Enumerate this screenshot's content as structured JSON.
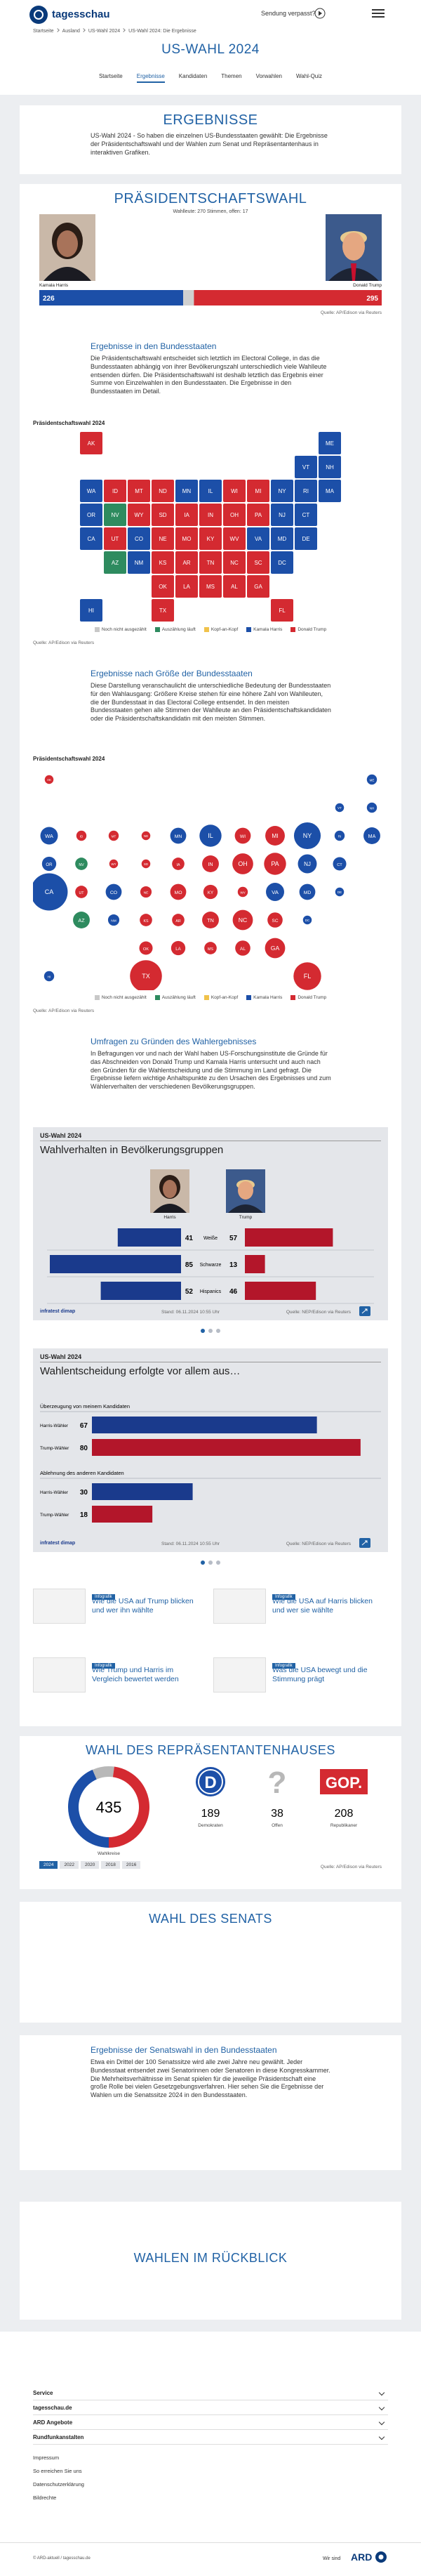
{
  "header": {
    "logo": "tagesschau",
    "missed": "Sendung verpasst?"
  },
  "breadcrumb": [
    "Startseite",
    "Ausland",
    "US-Wahl 2024",
    "US-Wahl 2024: Die Ergebnisse"
  ],
  "page_title": "US-WAHL 2024",
  "nav": [
    "Startseite",
    "Ergebnisse",
    "Kandidaten",
    "Themen",
    "Vorwahlen",
    "Wahl-Quiz"
  ],
  "intro": {
    "title": "ERGEBNISSE",
    "text": "US-Wahl 2024 - So haben die einzelnen US-Bundesstaaten gewählt: Die Ergebnisse der Präsidentschaftswahl und der Wahlen zum Senat und Repräsentantenhaus in interaktiven Grafiken."
  },
  "president": {
    "title": "PRÄSIDENTSCHAFTSWAHL",
    "subtitle": "Wahlleute: 270 Stimmen, offen: 17",
    "states_heading": "Ergebnisse in den Bundesstaaten",
    "states_text": "Die Präsidentschaftswahl entscheidet sich letztlich im Electoral College, in das die Bundesstaaten abhängig von ihrer Bevölkerungszahl unterschiedlich viele Wahlleute entsenden dürfen. Die Präsidentschaftswahl ist deshalb letztlich das Ergebnis einer Summe von Einzelwahlen in den Bundesstaaten. Die Ergebnisse in den Bundesstaaten im Detail.",
    "size_heading": "Ergebnisse nach Größe der Bundesstaaten",
    "size_text": "Diese Darstellung veranschaulicht die unterschiedliche Bedeutung der Bundesstaaten für den Wahlausgang: Größere Kreise stehen für eine höhere Zahl von Wahlleuten, die der Bundesstaat in das Electoral College entsendet. In den meisten Bundesstaaten gehen alle Stimmen der Wahlleute an den Präsidentschaftskandidaten oder die Präsidentschaftskandidatin mit den meisten Stimmen.",
    "polls_heading": "Umfragen zu Gründen des Wahlergebnisses",
    "polls_text": "In Befragungen vor und nach der Wahl haben US-Forschungsinstitute die Gründe für das Abschneiden von Donald Trump und Kamala Harris untersucht und auch nach den Gründen für die Wahlentscheidung und die Stimmung im Land gefragt. Die Ergebnisse liefern wichtige Anhaltspunkte zu den Ursachen des Ergebnisses und zum Wählerverhalten der verschiedenen Bevölkerungsgruppen."
  },
  "teasers": [
    {
      "kicker": "Infografik",
      "title": "Wie die USA auf Trump blicken und wer ihn wählte"
    },
    {
      "kicker": "Infografik",
      "title": "Wie die USA auf Harris blicken und wer sie wählte"
    },
    {
      "kicker": "Infografik",
      "title": "Wie Trump und Harris im Vergleich bewertet werden"
    },
    {
      "kicker": "Infografik",
      "title": "Was die USA bewegt und die Stimmung prägt"
    }
  ],
  "house": {
    "title": "WAHL DES REPRÄSENTANTENHAUSES"
  },
  "senate": {
    "title": "WAHL DES SENATS",
    "heading": "Ergebnisse der Senatswahl in den Bundesstaaten",
    "text": "Etwa ein Drittel der 100 Senatssitze wird alle zwei Jahre neu gewählt. Jeder Bundesstaat entsendet zwei Senatorinnen oder Senatoren in diese Kongresskammer. Die Mehrheitsverhältnisse im Senat spielen für die jeweilige Präsidentschaft eine große Rolle bei vielen Gesetzgebungsverfahren. Hier sehen Sie die Ergebnisse der Wahlen um die Senatssitze 2024 in den Bundesstaaten."
  },
  "review": {
    "title": "WAHLEN IM RÜCKBLICK"
  },
  "footer": {
    "sections": [
      "Service",
      "tagesschau.de",
      "ARD Angebote",
      "Rundfunkanstalten"
    ],
    "links": [
      "Impressum",
      "So erreichen Sie uns",
      "Datenschutzerklärung",
      "Bildrechte"
    ],
    "copyright": "© ARD-aktuell / tagesschau.de",
    "brand_text": "Wir sind",
    "brand": "ARD"
  },
  "chart_data": [
    {
      "type": "bar",
      "xlim": [
        0,
        538
      ],
      "series": [
        {
          "name": "Kamala Harris",
          "color": "#1c4fa8",
          "values": [
            226
          ]
        },
        {
          "name": "Donald Trump",
          "color": "#d42a31",
          "values": [
            295
          ]
        }
      ],
      "source": "Quelle: AP/Edison via Reuters"
    },
    {
      "type": "map",
      "title": "Präsidentschaftswahl 2024",
      "legend": [
        {
          "name": "Noch nicht ausgezählt",
          "color": "#c8c8c8"
        },
        {
          "name": "Auszählung läuft",
          "color": "#2e8b5f"
        },
        {
          "name": "Kopf-an-Kopf",
          "color": "#f0c24b"
        },
        {
          "name": "Kamala Harris",
          "color": "#1c4fa8"
        },
        {
          "name": "Donald Trump",
          "color": "#d42a31"
        }
      ],
      "states": [
        {
          "abbr": "AL",
          "color": "#d42a31"
        },
        {
          "abbr": "AK",
          "color": "#d42a31"
        },
        {
          "abbr": "AZ",
          "color": "#2e8b5f"
        },
        {
          "abbr": "AR",
          "color": "#d42a31"
        },
        {
          "abbr": "CA",
          "color": "#1c4fa8"
        },
        {
          "abbr": "CO",
          "color": "#1c4fa8"
        },
        {
          "abbr": "CT",
          "color": "#1c4fa8"
        },
        {
          "abbr": "DE",
          "color": "#1c4fa8"
        },
        {
          "abbr": "DC",
          "color": "#1c4fa8"
        },
        {
          "abbr": "FL",
          "color": "#d42a31"
        },
        {
          "abbr": "GA",
          "color": "#d42a31"
        },
        {
          "abbr": "HI",
          "color": "#1c4fa8"
        },
        {
          "abbr": "ID",
          "color": "#d42a31"
        },
        {
          "abbr": "IL",
          "color": "#1c4fa8"
        },
        {
          "abbr": "IN",
          "color": "#d42a31"
        },
        {
          "abbr": "IA",
          "color": "#d42a31"
        },
        {
          "abbr": "KS",
          "color": "#d42a31"
        },
        {
          "abbr": "KY",
          "color": "#d42a31"
        },
        {
          "abbr": "LA",
          "color": "#d42a31"
        },
        {
          "abbr": "ME",
          "color": "#1c4fa8"
        },
        {
          "abbr": "MD",
          "color": "#1c4fa8"
        },
        {
          "abbr": "MA",
          "color": "#1c4fa8"
        },
        {
          "abbr": "MI",
          "color": "#d42a31"
        },
        {
          "abbr": "MN",
          "color": "#1c4fa8"
        },
        {
          "abbr": "MS",
          "color": "#d42a31"
        },
        {
          "abbr": "MO",
          "color": "#d42a31"
        },
        {
          "abbr": "MT",
          "color": "#d42a31"
        },
        {
          "abbr": "NE",
          "color": "#d42a31"
        },
        {
          "abbr": "NV",
          "color": "#2e8b5f"
        },
        {
          "abbr": "NH",
          "color": "#1c4fa8"
        },
        {
          "abbr": "NJ",
          "color": "#1c4fa8"
        },
        {
          "abbr": "NM",
          "color": "#1c4fa8"
        },
        {
          "abbr": "NY",
          "color": "#1c4fa8"
        },
        {
          "abbr": "NC",
          "color": "#d42a31"
        },
        {
          "abbr": "ND",
          "color": "#d42a31"
        },
        {
          "abbr": "OH",
          "color": "#d42a31"
        },
        {
          "abbr": "OK",
          "color": "#d42a31"
        },
        {
          "abbr": "OR",
          "color": "#1c4fa8"
        },
        {
          "abbr": "PA",
          "color": "#d42a31"
        },
        {
          "abbr": "RI",
          "color": "#1c4fa8"
        },
        {
          "abbr": "SC",
          "color": "#d42a31"
        },
        {
          "abbr": "SD",
          "color": "#d42a31"
        },
        {
          "abbr": "TN",
          "color": "#d42a31"
        },
        {
          "abbr": "TX",
          "color": "#d42a31"
        },
        {
          "abbr": "UT",
          "color": "#d42a31"
        },
        {
          "abbr": "VT",
          "color": "#1c4fa8"
        },
        {
          "abbr": "VA",
          "color": "#1c4fa8"
        },
        {
          "abbr": "WA",
          "color": "#1c4fa8"
        },
        {
          "abbr": "WV",
          "color": "#d42a31"
        },
        {
          "abbr": "WI",
          "color": "#d42a31"
        },
        {
          "abbr": "WY",
          "color": "#d42a31"
        }
      ],
      "source": "Quelle: AP/Edison via Reuters"
    },
    {
      "type": "bubble",
      "title": "Präsidentschaftswahl 2024",
      "legend": [
        {
          "name": "Noch nicht ausgezählt",
          "color": "#c8c8c8"
        },
        {
          "name": "Auszählung läuft",
          "color": "#2e8b5f"
        },
        {
          "name": "Kopf-an-Kopf",
          "color": "#f0c24b"
        },
        {
          "name": "Kamala Harris",
          "color": "#1c4fa8"
        },
        {
          "name": "Donald Trump",
          "color": "#d42a31"
        }
      ],
      "categories": [
        "AL",
        "AK",
        "AZ",
        "AR",
        "CA",
        "CO",
        "CT",
        "DE",
        "DC",
        "FL",
        "GA",
        "HI",
        "ID",
        "IL",
        "IN",
        "IA",
        "KS",
        "KY",
        "LA",
        "ME",
        "MD",
        "MA",
        "MI",
        "MN",
        "MS",
        "MO",
        "MT",
        "NE",
        "NV",
        "NH",
        "NJ",
        "NM",
        "NY",
        "NC",
        "ND",
        "OH",
        "OK",
        "OR",
        "PA",
        "RI",
        "SC",
        "SD",
        "TN",
        "TX",
        "UT",
        "VT",
        "VA",
        "WA",
        "WV",
        "WI",
        "WY"
      ],
      "values": [
        9,
        3,
        11,
        6,
        54,
        10,
        7,
        3,
        3,
        30,
        16,
        4,
        4,
        19,
        11,
        6,
        6,
        8,
        8,
        4,
        10,
        11,
        15,
        10,
        6,
        10,
        4,
        5,
        6,
        4,
        14,
        5,
        28,
        16,
        3,
        17,
        7,
        8,
        19,
        4,
        9,
        3,
        11,
        40,
        6,
        3,
        13,
        12,
        4,
        10,
        3
      ],
      "colors": [
        "#d42a31",
        "#d42a31",
        "#2e8b5f",
        "#d42a31",
        "#1c4fa8",
        "#1c4fa8",
        "#1c4fa8",
        "#1c4fa8",
        "#1c4fa8",
        "#d42a31",
        "#d42a31",
        "#1c4fa8",
        "#d42a31",
        "#1c4fa8",
        "#d42a31",
        "#d42a31",
        "#d42a31",
        "#d42a31",
        "#d42a31",
        "#1c4fa8",
        "#1c4fa8",
        "#1c4fa8",
        "#d42a31",
        "#1c4fa8",
        "#d42a31",
        "#d42a31",
        "#d42a31",
        "#d42a31",
        "#2e8b5f",
        "#1c4fa8",
        "#1c4fa8",
        "#1c4fa8",
        "#1c4fa8",
        "#d42a31",
        "#d42a31",
        "#d42a31",
        "#d42a31",
        "#1c4fa8",
        "#d42a31",
        "#1c4fa8",
        "#d42a31",
        "#d42a31",
        "#d42a31",
        "#d42a31",
        "#d42a31",
        "#1c4fa8",
        "#1c4fa8",
        "#1c4fa8",
        "#d42a31",
        "#d42a31",
        "#d42a31"
      ],
      "source": "Quelle: AP/Edison via Reuters"
    },
    {
      "type": "butterfly",
      "kicker": "US-Wahl 2024",
      "title": "Wahlverhalten in Bevölkerungsgruppen",
      "xlim": [
        0,
        100
      ],
      "categories": [
        "Weiße",
        "Schwarze",
        "Hispanics"
      ],
      "series": [
        {
          "name": "Harris",
          "color": "#1a3a8c",
          "values": [
            41,
            85,
            52
          ]
        },
        {
          "name": "Trump",
          "color": "#b3162a",
          "values": [
            57,
            13,
            46
          ]
        }
      ],
      "brand": "infratest dimap",
      "updated": "Stand: 06.11.2024 10:55 Uhr",
      "source": "Quelle: NEP/Edison via Reuters"
    },
    {
      "type": "hbar",
      "kicker": "US-Wahl 2024",
      "title": "Wahlentscheidung erfolgte vor allem aus…",
      "xlim": [
        0,
        84
      ],
      "categories": [
        "Überzeugung von meinem Kandidaten",
        "Ablehnung des anderen Kandidaten"
      ],
      "series": [
        {
          "name": "Harris-Wähler",
          "color": "#1a3a8c",
          "values": [
            67,
            30
          ]
        },
        {
          "name": "Trump-Wähler",
          "color": "#b3162a",
          "values": [
            80,
            18
          ]
        }
      ],
      "brand": "infratest dimap",
      "updated": "Stand: 06.11.2024 10:55 Uhr",
      "source": "Quelle: NEP/Edison via Reuters"
    },
    {
      "type": "donut",
      "total": 435,
      "total_label": "Wahlkreise",
      "categories": [
        "Demokraten",
        "Offen",
        "Republikaner"
      ],
      "values": [
        189,
        38,
        208
      ],
      "colors": [
        "#1c4fa8",
        "#b8b8b8",
        "#d42a31"
      ],
      "icons": [
        "D",
        "?",
        "GOP."
      ],
      "years": [
        "2024",
        "2022",
        "2020",
        "2018",
        "2016"
      ],
      "source": "Quelle: AP/Edison via Reuters"
    }
  ]
}
